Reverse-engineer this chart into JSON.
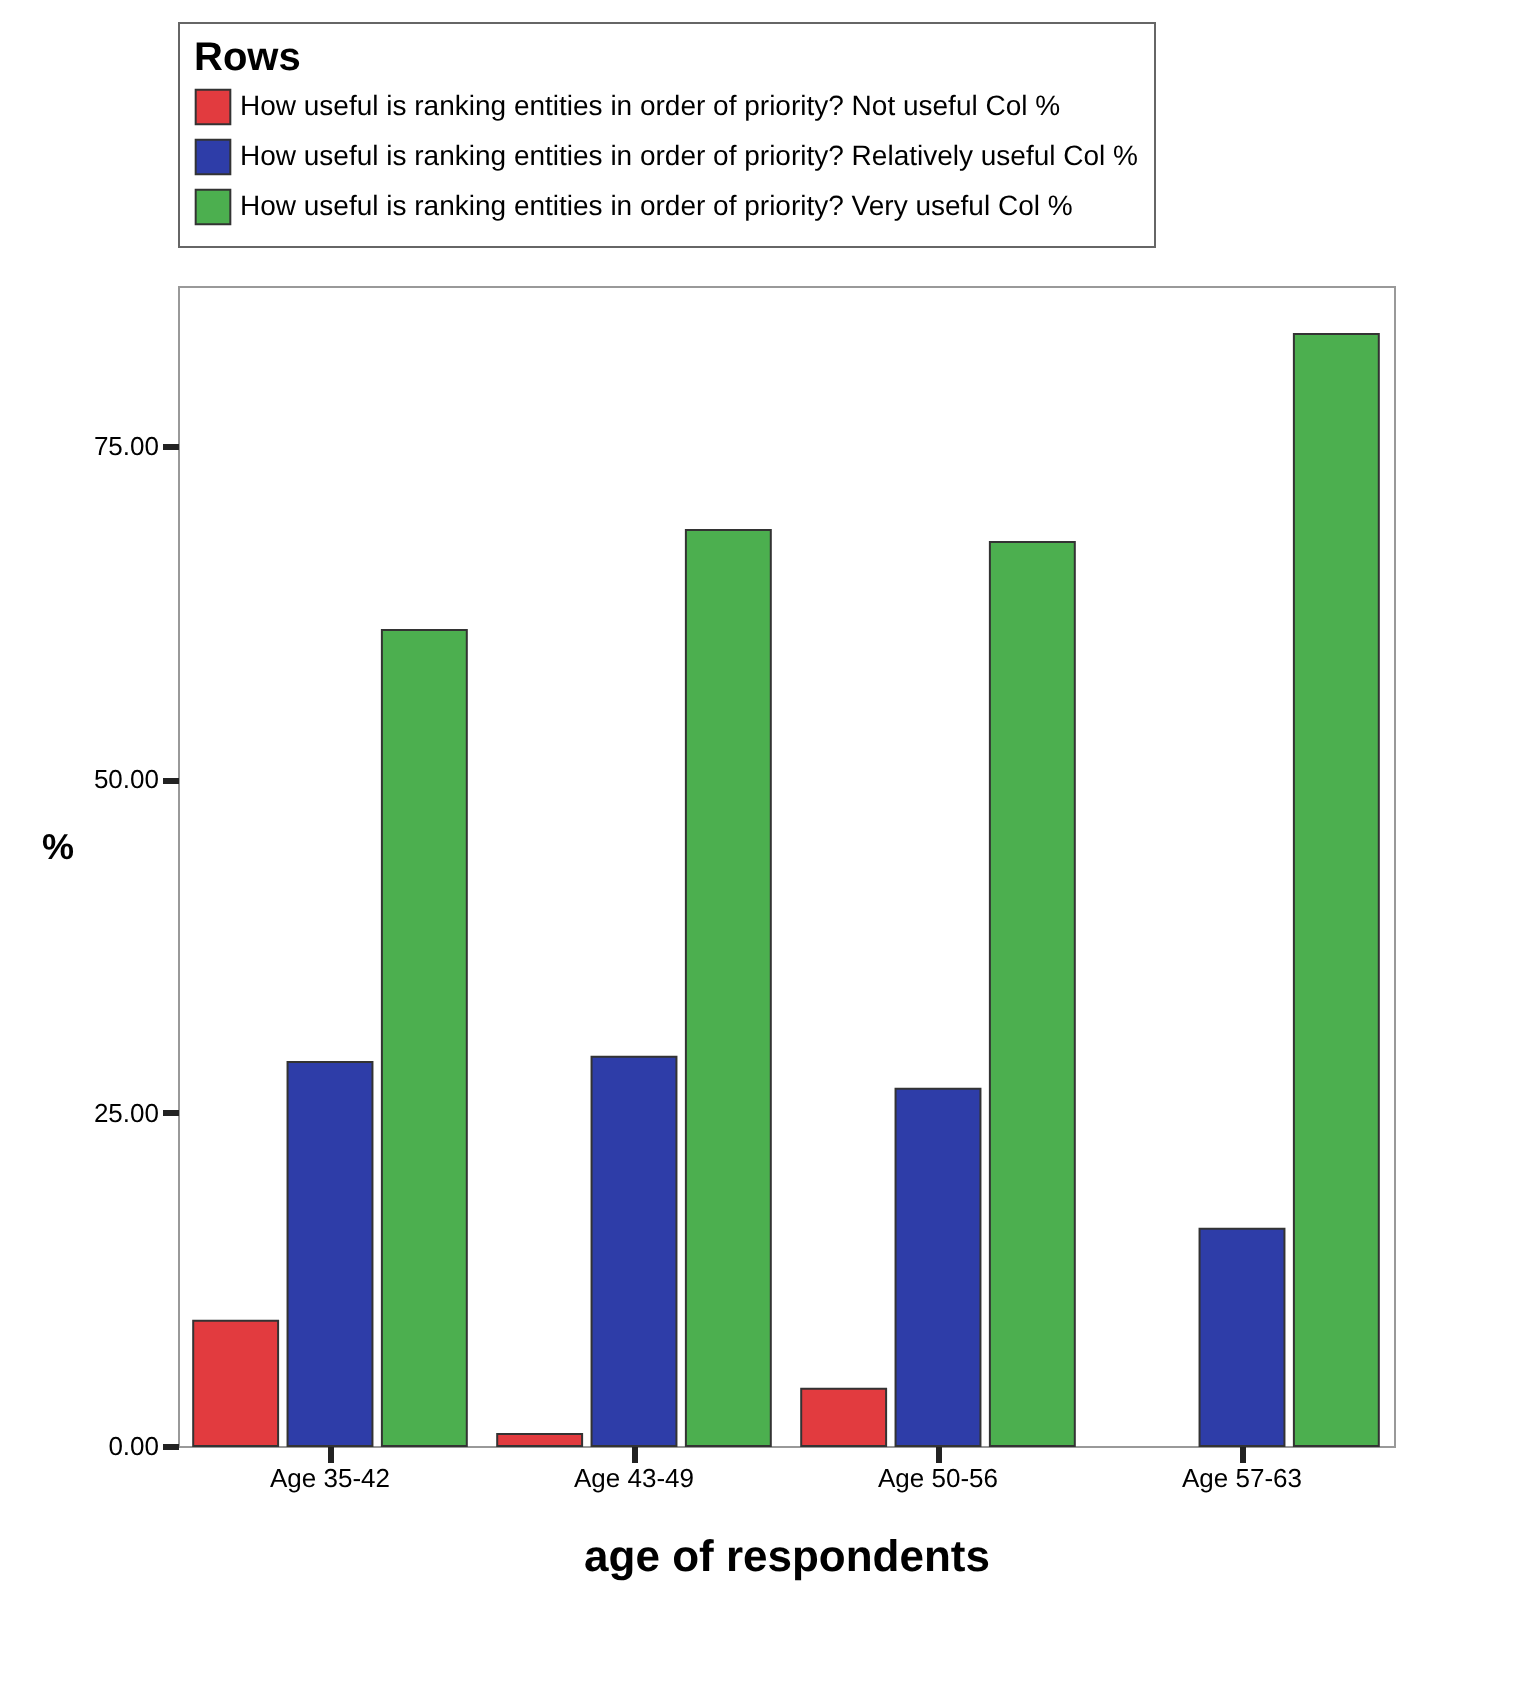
{
  "chart_data": {
    "type": "bar",
    "xlabel": "age of respondents",
    "ylabel": "%",
    "legend_title": "Rows",
    "legend": "top",
    "categories": [
      "Age 35-42",
      "Age 43-49",
      "Age 50-56",
      "Age 57-63"
    ],
    "series": [
      {
        "name": "How useful is ranking entities in order of priority? Not useful Col %",
        "color": "#e23b3f",
        "values": [
          9.4,
          0.9,
          4.3,
          null
        ]
      },
      {
        "name": "How useful is ranking entities in order of priority? Relatively useful Col %",
        "color": "#2e3da8",
        "values": [
          28.8,
          29.2,
          26.8,
          16.3
        ]
      },
      {
        "name": "How useful is ranking entities in order of priority? Very useful Col %",
        "color": "#4caf4f",
        "values": [
          61.2,
          68.7,
          67.8,
          83.4
        ]
      }
    ],
    "ylim": [
      0,
      87
    ],
    "yticks": [
      {
        "value": 0,
        "label": "0.00"
      },
      {
        "value": 25,
        "label": "25.00"
      },
      {
        "value": 50,
        "label": "50.00"
      },
      {
        "value": 75,
        "label": "75.00"
      }
    ],
    "grid": false
  }
}
